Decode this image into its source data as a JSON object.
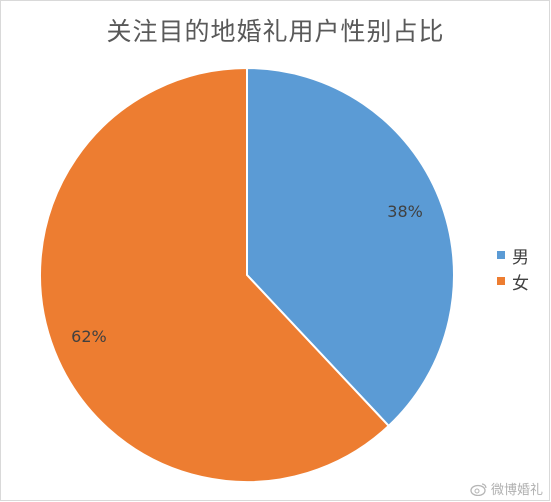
{
  "chart_data": {
    "type": "pie",
    "title": "关注目的地婚礼用户性别占比",
    "slices": [
      {
        "label": "男",
        "value": 38,
        "value_label": "38%",
        "color": "#5b9bd5"
      },
      {
        "label": "女",
        "value": 62,
        "value_label": "62%",
        "color": "#ed7d31"
      }
    ],
    "start_angle_deg": 0,
    "direction": "clockwise",
    "legend_position": "right"
  },
  "watermark": {
    "text": "微博婚礼",
    "icon": "weibo-logo-icon"
  }
}
